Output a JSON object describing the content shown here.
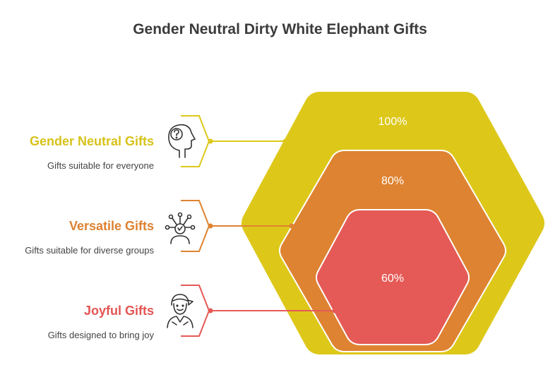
{
  "title": "Gender Neutral Dirty White Elephant Gifts",
  "colors": {
    "outer": "#DDC81A",
    "middle": "#DE8331",
    "inner": "#E55A56",
    "title_text": "#3b3b3b",
    "desc_text": "#444444",
    "label_yellow": "#D7C21A",
    "label_orange": "#DD8131",
    "label_red": "#E25553"
  },
  "levels": [
    {
      "name": "Gender Neutral Gifts",
      "description": "Gifts suitable for everyone",
      "percent": "100%",
      "icon": "head-question-icon"
    },
    {
      "name": "Versatile Gifts",
      "description": "Gifts suitable for diverse groups",
      "percent": "80%",
      "icon": "person-network-icon"
    },
    {
      "name": "Joyful Gifts",
      "description": "Gifts designed to bring joy",
      "percent": "60%",
      "icon": "person-smiling-icon"
    }
  ]
}
